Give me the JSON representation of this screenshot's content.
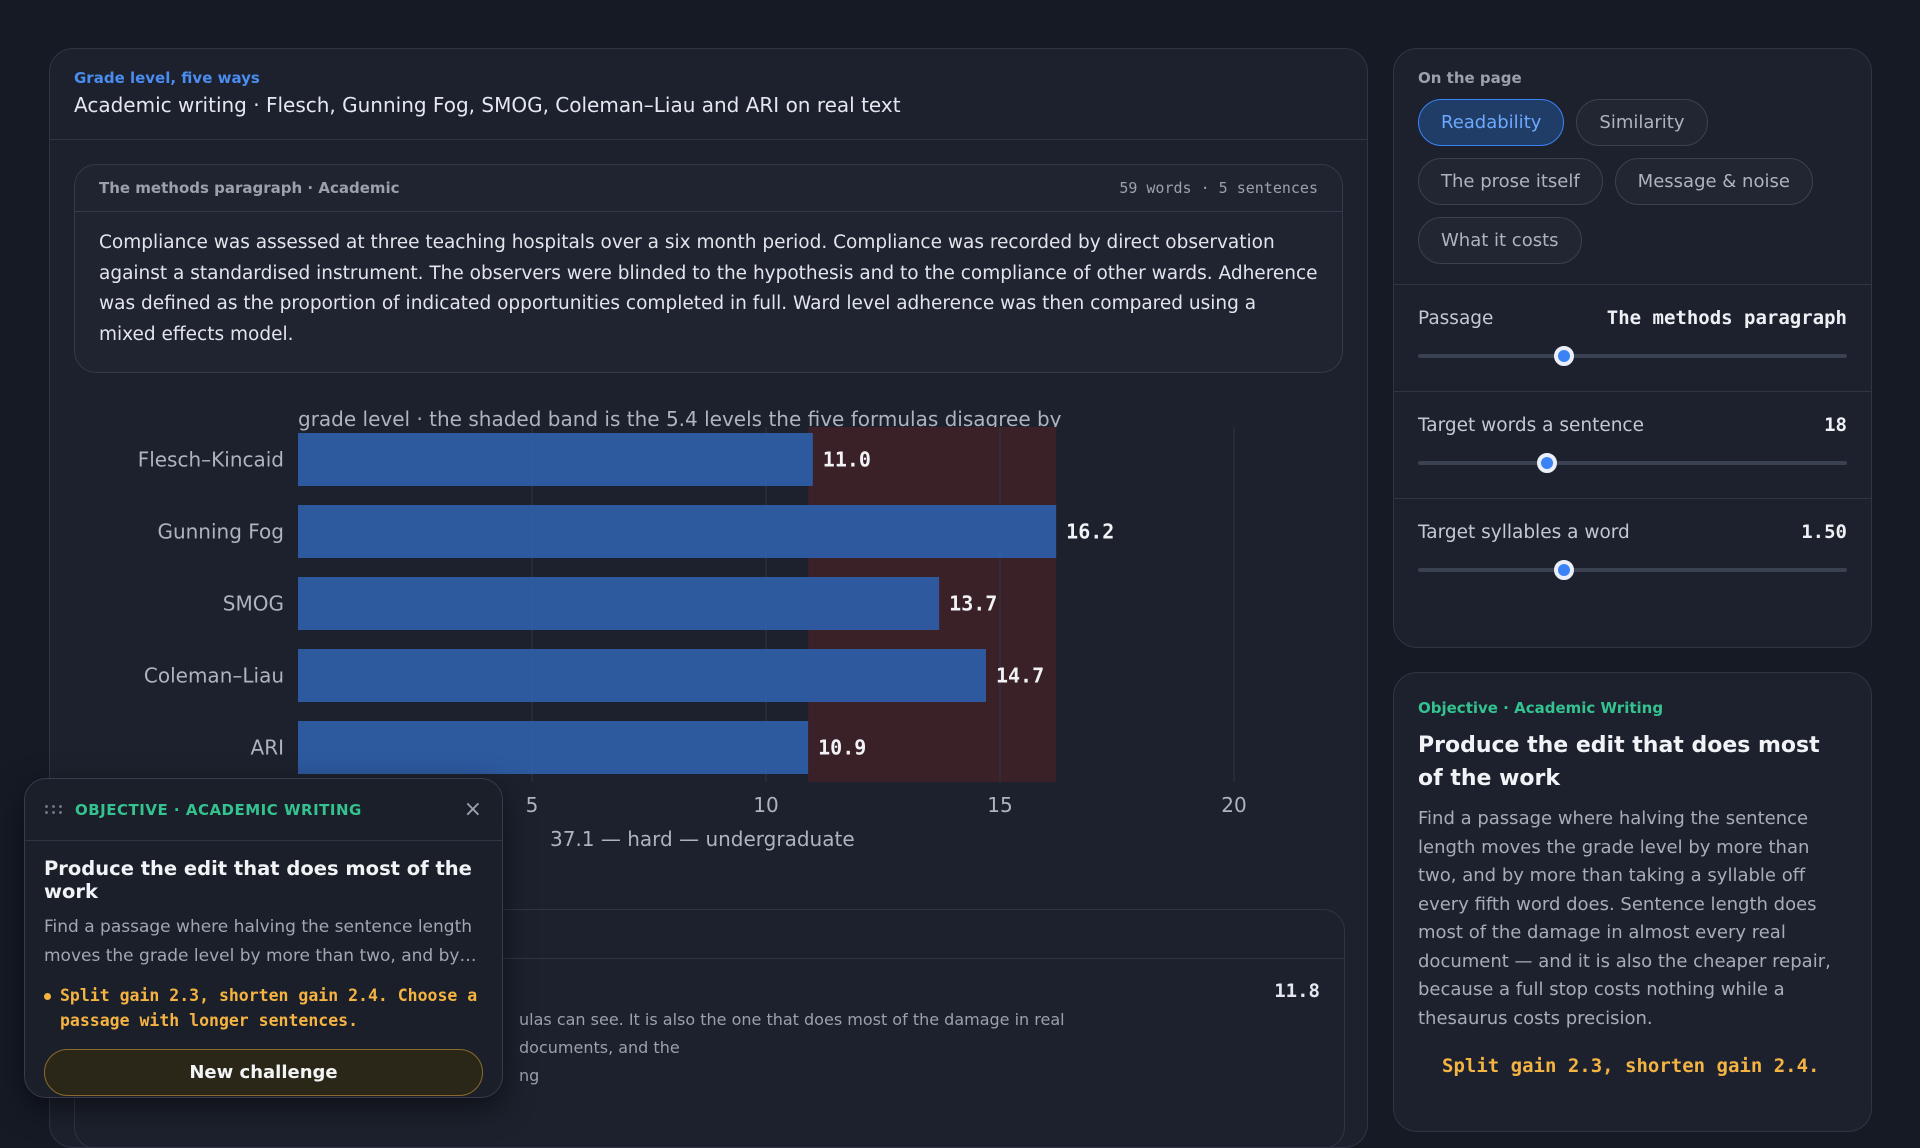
{
  "main": {
    "eyebrow": "Grade level, five ways",
    "title": "Academic writing · Flesch, Gunning Fog, SMOG, Coleman–Liau and ARI on real text"
  },
  "passage": {
    "title": "The methods paragraph · Academic",
    "stats": "59 words · 5 sentences",
    "text": "Compliance was assessed at three teaching hospitals over a six month period. Compliance was recorded by direct observation against a standardised instrument. The observers were blinded to the hypothesis and to the compliance of other wards. Adherence was defined as the proportion of indicated opportunities completed in full. Ward level adherence was then compared using a mixed effects model."
  },
  "chart_subtitle": "grade level · the shaded band is the 5.4 levels the five formulas disagree by",
  "chart_data": {
    "type": "bar",
    "orientation": "horizontal",
    "categories": [
      "Flesch–Kincaid",
      "Gunning Fog",
      "SMOG",
      "Coleman–Liau",
      "ARI"
    ],
    "values": [
      11.0,
      16.2,
      13.7,
      14.7,
      10.9
    ],
    "value_labels": [
      "11.0",
      "16.2",
      "13.7",
      "14.7",
      "10.9"
    ],
    "xlim": [
      0,
      20
    ],
    "xticks": [
      "5",
      "10",
      "15",
      "20"
    ],
    "xtick_values": [
      5,
      10,
      15,
      20
    ],
    "band": [
      10.9,
      16.2
    ],
    "grid": true,
    "colors": {
      "bar": "#2f5ea8",
      "band": "#3a2128",
      "label": "#f1f3f6"
    },
    "caption_fragment": "37.1 — hard — undergraduate"
  },
  "lower_card": {
    "value": "11.8",
    "text_line1": "ulas can see. It is also the one that does most of the damage in real documents, and the",
    "text_line2": "ng"
  },
  "sidebar": {
    "eyebrow": "On the page",
    "chips": [
      {
        "label": "Readability",
        "active": true
      },
      {
        "label": "Similarity",
        "active": false
      },
      {
        "label": "The prose itself",
        "active": false
      },
      {
        "label": "Message & noise",
        "active": false
      },
      {
        "label": "What it costs",
        "active": false
      }
    ],
    "controls": [
      {
        "label": "Passage",
        "value": "The methods paragraph",
        "level": 0.34
      },
      {
        "label": "Target words a sentence",
        "value": "18",
        "level": 0.3
      },
      {
        "label": "Target syllables a word",
        "value": "1.50",
        "level": 0.34
      }
    ]
  },
  "objective": {
    "eyebrow": "Objective · Academic Writing",
    "title": "Produce the edit that does most of the work",
    "description": "Find a passage where halving the sentence length moves the grade level by more than two, and by more than taking a syllable off every fifth word does. Sentence length does most of the damage in almost every real document — and it is also the cheaper repair, because a full stop costs nothing while a thesaurus costs precision.",
    "result": "Split gain 2.3, shorten gain 2.4."
  },
  "popup": {
    "eyebrow": "OBJECTIVE · ACADEMIC WRITING",
    "close_icon": "×",
    "title": "Produce the edit that does most of the work",
    "description": "Find a passage where halving the sentence length moves the grade level by more than two, and by…",
    "note": "Split gain 2.3, shorten gain 2.4. Choose a passage with longer sentences.",
    "button": "New challenge"
  }
}
